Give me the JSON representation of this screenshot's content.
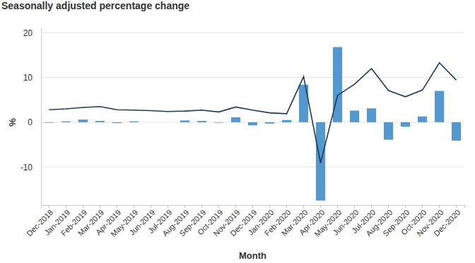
{
  "chart_data": {
    "type": "bar",
    "title": "Seasonally adjusted percentage change",
    "x_label": "Month",
    "y_label": "%",
    "categories": [
      "Dec-2018",
      "Jan-2019",
      "Feb-2019",
      "Mar-2019",
      "Apr-2019",
      "May-2019",
      "Jun-2019",
      "Jul-2019",
      "Aug-2019",
      "Sep-2019",
      "Oct-2019",
      "Nov-2019",
      "Dec-2019",
      "Jan-2020",
      "Feb-2020",
      "Mar-2020",
      "Apr-2020",
      "May-2020",
      "Jun-2020",
      "Jul-2020",
      "Aug-2020",
      "Sep-2020",
      "Oct-2020",
      "Nov-2020",
      "Dec-2020"
    ],
    "series": [
      {
        "type": "bar",
        "color": "#5598cf",
        "values": [
          -0.1,
          0.2,
          0.6,
          0.3,
          -0.2,
          0.2,
          0.0,
          0.0,
          0.4,
          0.3,
          -0.1,
          1.1,
          -0.7,
          -0.3,
          0.5,
          8.4,
          -17.5,
          16.8,
          2.6,
          3.1,
          -3.9,
          -1.0,
          1.3,
          7.0,
          -4.1
        ]
      },
      {
        "type": "line",
        "color": "#1e3b5c",
        "values": [
          2.8,
          3.0,
          3.3,
          3.5,
          2.8,
          2.7,
          2.6,
          2.4,
          2.5,
          2.7,
          2.3,
          3.4,
          2.7,
          2.1,
          1.9,
          10.2,
          -9.1,
          6.0,
          8.5,
          12.0,
          7.1,
          5.7,
          7.2,
          13.3,
          9.4
        ]
      }
    ],
    "ylim": [
      -18.5,
      21
    ],
    "yticks": [
      -10,
      0,
      10,
      20
    ],
    "grid": true
  }
}
